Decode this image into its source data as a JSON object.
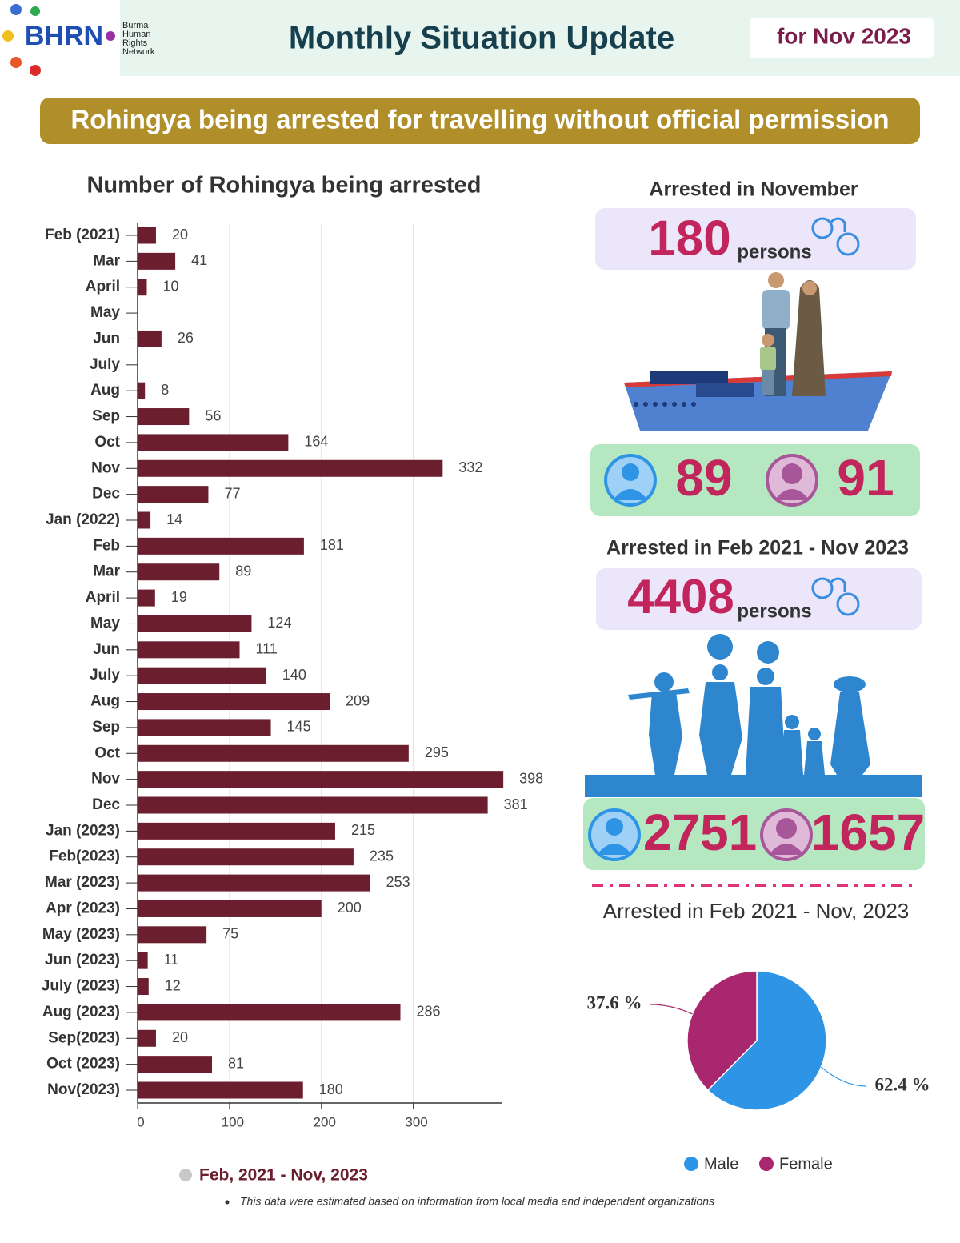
{
  "header": {
    "logo_text": "BHRN",
    "org_name": [
      "Burma",
      "Human",
      "Rights",
      "Network"
    ],
    "title": "Monthly Situation Update",
    "period": "for Nov 2023"
  },
  "banner": "Rohingya being arrested for travelling without official permission",
  "chart_data": [
    {
      "type": "bar",
      "orientation": "horizontal",
      "title": "Number of Rohingya being arrested",
      "categories": [
        "Feb (2021)",
        "Mar",
        "April",
        "May",
        "Jun",
        "July",
        "Aug",
        "Sep",
        "Oct",
        "Nov",
        "Dec",
        "Jan (2022)",
        "Feb",
        "Mar",
        "April",
        "May",
        "Jun",
        "July",
        "Aug",
        "Sep",
        "Oct",
        "Nov",
        "Dec",
        "Jan (2023)",
        "Feb(2023)",
        "Mar (2023)",
        "Apr (2023)",
        "May (2023)",
        "Jun (2023)",
        "July (2023)",
        "Aug (2023)",
        "Sep(2023)",
        "Oct (2023)",
        "Nov(2023)"
      ],
      "series": [
        {
          "name": "Feb, 2021 - Nov, 2023",
          "color": "#6b1f2e",
          "legend_dot_color": "#c8c8c8",
          "values": [
            20,
            41,
            10,
            null,
            26,
            null,
            8,
            56,
            164,
            332,
            77,
            14,
            181,
            89,
            19,
            124,
            111,
            140,
            209,
            145,
            295,
            398,
            381,
            215,
            235,
            253,
            200,
            75,
            11,
            12,
            286,
            20,
            81,
            180
          ]
        }
      ],
      "xlim": [
        0,
        397
      ],
      "xticks": [
        0,
        100,
        200,
        300
      ],
      "grid": true
    },
    {
      "type": "pie",
      "title": "Arrested in Feb 2021 - Nov, 2023",
      "categories": [
        "Male",
        "Female"
      ],
      "values": [
        62.4,
        37.6
      ],
      "value_labels": [
        "62.4 %",
        "37.6 %"
      ],
      "colors": [
        "#2e95e6",
        "#a8276e"
      ],
      "legend": "bottom"
    }
  ],
  "stats": {
    "november": {
      "title": "Arrested in November",
      "total": 180,
      "unit": "persons",
      "male": 89,
      "female": 91
    },
    "overall": {
      "title": "Arrested in Feb 2021 - Nov 2023",
      "total": 4408,
      "unit": "persons",
      "male": 2751,
      "female": 1657
    }
  },
  "footnote": "This data were estimated based on information from local media and independent organizations"
}
